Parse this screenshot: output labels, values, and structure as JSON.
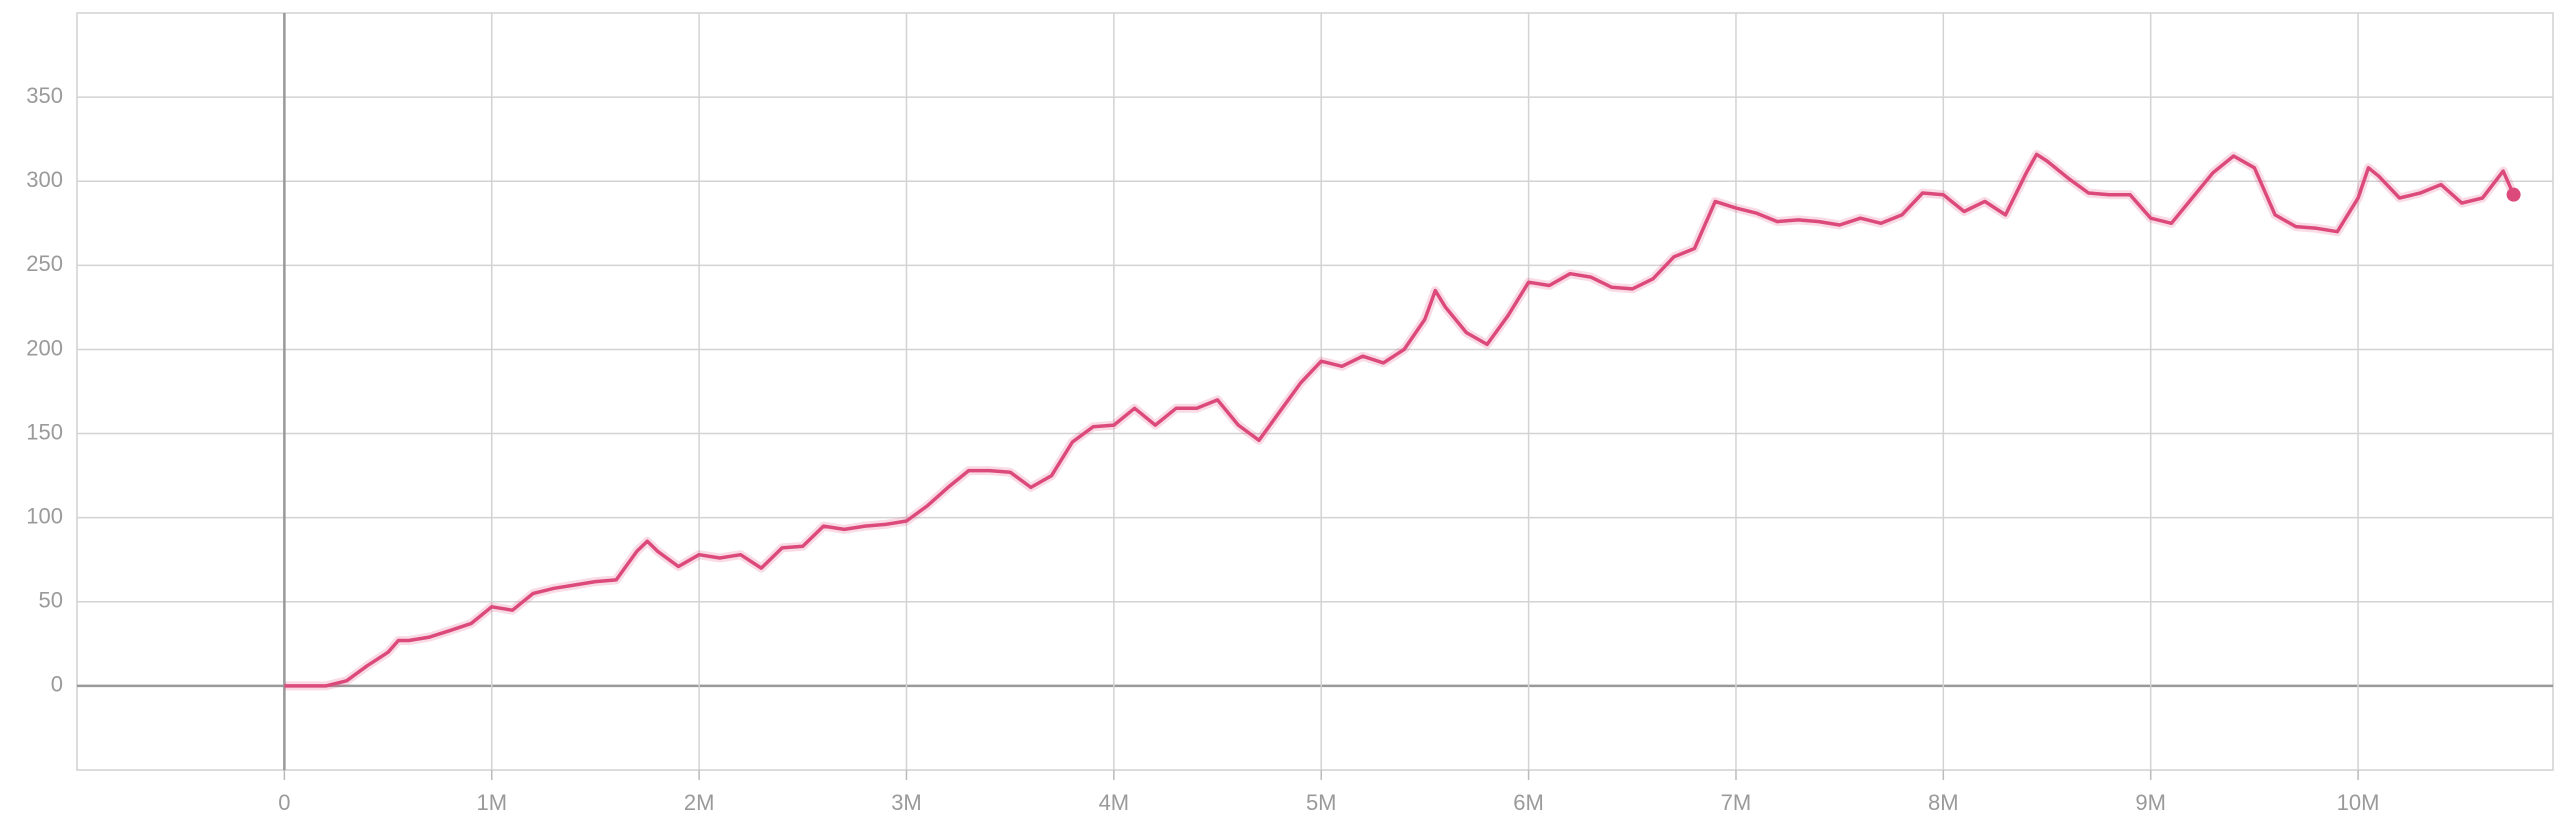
{
  "chart_data": {
    "type": "line",
    "x": [
      0,
      100000,
      200000,
      300000,
      400000,
      500000,
      550000,
      600000,
      700000,
      800000,
      900000,
      1000000,
      1100000,
      1200000,
      1300000,
      1400000,
      1500000,
      1600000,
      1700000,
      1750000,
      1800000,
      1900000,
      2000000,
      2100000,
      2200000,
      2300000,
      2400000,
      2500000,
      2600000,
      2700000,
      2800000,
      2900000,
      3000000,
      3100000,
      3200000,
      3300000,
      3400000,
      3500000,
      3600000,
      3700000,
      3800000,
      3900000,
      4000000,
      4100000,
      4200000,
      4300000,
      4400000,
      4500000,
      4600000,
      4700000,
      4800000,
      4900000,
      5000000,
      5100000,
      5200000,
      5300000,
      5400000,
      5500000,
      5550000,
      5600000,
      5700000,
      5800000,
      5900000,
      6000000,
      6100000,
      6200000,
      6300000,
      6400000,
      6500000,
      6600000,
      6700000,
      6800000,
      6900000,
      7000000,
      7100000,
      7200000,
      7300000,
      7400000,
      7500000,
      7600000,
      7700000,
      7800000,
      7900000,
      8000000,
      8100000,
      8200000,
      8300000,
      8400000,
      8450000,
      8500000,
      8600000,
      8700000,
      8800000,
      8900000,
      9000000,
      9100000,
      9200000,
      9300000,
      9400000,
      9500000,
      9600000,
      9700000,
      9800000,
      9900000,
      10000000,
      10050000,
      10100000,
      10200000,
      10300000,
      10400000,
      10500000,
      10600000,
      10700000,
      10750000
    ],
    "values": [
      0,
      0,
      0,
      3,
      12,
      20,
      27,
      27,
      29,
      33,
      37,
      47,
      45,
      55,
      58,
      60,
      62,
      63,
      80,
      86,
      80,
      71,
      78,
      76,
      78,
      70,
      82,
      83,
      95,
      93,
      95,
      96,
      98,
      107,
      118,
      128,
      128,
      127,
      118,
      125,
      145,
      154,
      155,
      165,
      155,
      165,
      165,
      170,
      155,
      146,
      163,
      180,
      193,
      190,
      196,
      192,
      200,
      218,
      235,
      225,
      210,
      203,
      220,
      240,
      238,
      245,
      243,
      237,
      236,
      242,
      255,
      260,
      288,
      284,
      281,
      276,
      277,
      276,
      274,
      278,
      275,
      280,
      293,
      292,
      282,
      288,
      280,
      305,
      316,
      312,
      302,
      293,
      292,
      292,
      278,
      275,
      290,
      305,
      315,
      308,
      280,
      273,
      272,
      270,
      290,
      308,
      303,
      290,
      293,
      298,
      287,
      290,
      306,
      292
    ],
    "color": "#dc4a7c",
    "xlim": [
      -1000000,
      10940000
    ],
    "ylim": [
      -50,
      400
    ],
    "xticks": [
      {
        "value": 0,
        "label": "0"
      },
      {
        "value": 1000000,
        "label": "1M"
      },
      {
        "value": 2000000,
        "label": "2M"
      },
      {
        "value": 3000000,
        "label": "3M"
      },
      {
        "value": 4000000,
        "label": "4M"
      },
      {
        "value": 5000000,
        "label": "5M"
      },
      {
        "value": 6000000,
        "label": "6M"
      },
      {
        "value": 7000000,
        "label": "7M"
      },
      {
        "value": 8000000,
        "label": "8M"
      },
      {
        "value": 9000000,
        "label": "9M"
      },
      {
        "value": 10000000,
        "label": "10M"
      }
    ],
    "yticks": [
      0,
      50,
      100,
      150,
      200,
      250,
      300,
      350
    ],
    "grid": true
  }
}
